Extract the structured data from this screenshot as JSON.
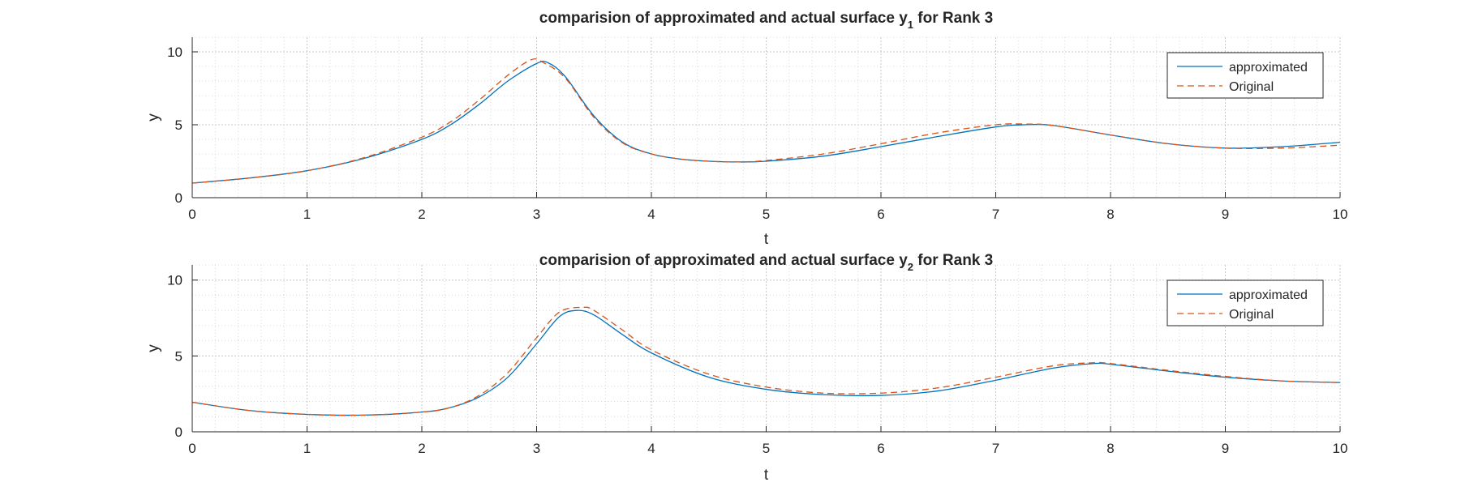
{
  "chart_data": [
    {
      "type": "line",
      "title_main": "comparision of approximated and actual surface y",
      "title_sub": "1",
      "title_tail": " for Rank 3",
      "xlabel": "t",
      "ylabel": "y",
      "xlim": [
        0,
        10
      ],
      "ylim": [
        0,
        11
      ],
      "xticks": [
        0,
        1,
        2,
        3,
        4,
        5,
        6,
        7,
        8,
        9,
        10
      ],
      "yticks": [
        0,
        5,
        10
      ],
      "grid": true,
      "minor_grid": true,
      "legend_position": "top-right",
      "series": [
        {
          "name": "approximated",
          "color": "#0072BD",
          "dash": "solid",
          "x": [
            0,
            0.5,
            1,
            1.5,
            2,
            2.25,
            2.5,
            2.75,
            3,
            3.1,
            3.25,
            3.5,
            3.75,
            4,
            4.25,
            4.5,
            4.75,
            5,
            5.5,
            6,
            6.5,
            7,
            7.25,
            7.5,
            8,
            8.5,
            9,
            9.5,
            10
          ],
          "y": [
            1.0,
            1.35,
            1.85,
            2.7,
            4.0,
            5.0,
            6.4,
            8.0,
            9.2,
            9.25,
            8.3,
            5.6,
            3.8,
            3.0,
            2.65,
            2.5,
            2.45,
            2.5,
            2.85,
            3.5,
            4.2,
            4.85,
            5.0,
            4.95,
            4.3,
            3.7,
            3.4,
            3.5,
            3.8
          ]
        },
        {
          "name": "Original",
          "color": "#D95319",
          "dash": "dashed",
          "x": [
            0,
            0.5,
            1,
            1.5,
            2,
            2.25,
            2.5,
            2.75,
            2.95,
            3.05,
            3.25,
            3.5,
            3.75,
            4,
            4.25,
            4.5,
            4.75,
            5,
            5.5,
            6,
            6.5,
            7,
            7.25,
            7.5,
            8,
            8.5,
            9,
            9.5,
            10
          ],
          "y": [
            1.0,
            1.35,
            1.85,
            2.75,
            4.15,
            5.2,
            6.7,
            8.4,
            9.45,
            9.3,
            8.2,
            5.5,
            3.75,
            3.0,
            2.65,
            2.5,
            2.45,
            2.55,
            3.0,
            3.7,
            4.45,
            5.0,
            5.05,
            4.95,
            4.3,
            3.7,
            3.4,
            3.4,
            3.6
          ]
        }
      ]
    },
    {
      "type": "line",
      "title_main": "comparision of approximated and actual surface y",
      "title_sub": "2",
      "title_tail": " for Rank 3",
      "xlabel": "t",
      "ylabel": "y",
      "xlim": [
        0,
        10
      ],
      "ylim": [
        0,
        11
      ],
      "xticks": [
        0,
        1,
        2,
        3,
        4,
        5,
        6,
        7,
        8,
        9,
        10
      ],
      "yticks": [
        0,
        5,
        10
      ],
      "grid": true,
      "minor_grid": true,
      "legend_position": "top-right",
      "series": [
        {
          "name": "approximated",
          "color": "#0072BD",
          "dash": "solid",
          "x": [
            0,
            0.5,
            1,
            1.5,
            2,
            2.25,
            2.5,
            2.75,
            3,
            3.2,
            3.35,
            3.5,
            3.75,
            4,
            4.5,
            5,
            5.5,
            6,
            6.5,
            7,
            7.5,
            7.85,
            8,
            8.5,
            9,
            9.5,
            10
          ],
          "y": [
            1.95,
            1.4,
            1.15,
            1.1,
            1.3,
            1.6,
            2.3,
            3.6,
            5.8,
            7.6,
            8.0,
            7.7,
            6.4,
            5.2,
            3.6,
            2.8,
            2.45,
            2.4,
            2.7,
            3.4,
            4.2,
            4.5,
            4.45,
            4.0,
            3.6,
            3.35,
            3.25
          ]
        },
        {
          "name": "Original",
          "color": "#D95319",
          "dash": "dashed",
          "x": [
            0,
            0.5,
            1,
            1.5,
            2,
            2.25,
            2.5,
            2.75,
            3,
            3.2,
            3.4,
            3.5,
            3.75,
            4,
            4.5,
            5,
            5.5,
            6,
            6.5,
            7,
            7.5,
            7.85,
            8,
            8.5,
            9,
            9.5,
            10
          ],
          "y": [
            1.95,
            1.4,
            1.15,
            1.1,
            1.3,
            1.6,
            2.4,
            3.9,
            6.2,
            7.9,
            8.2,
            8.0,
            6.7,
            5.4,
            3.8,
            2.95,
            2.55,
            2.55,
            2.9,
            3.6,
            4.35,
            4.55,
            4.5,
            4.05,
            3.65,
            3.35,
            3.25
          ]
        }
      ]
    }
  ]
}
